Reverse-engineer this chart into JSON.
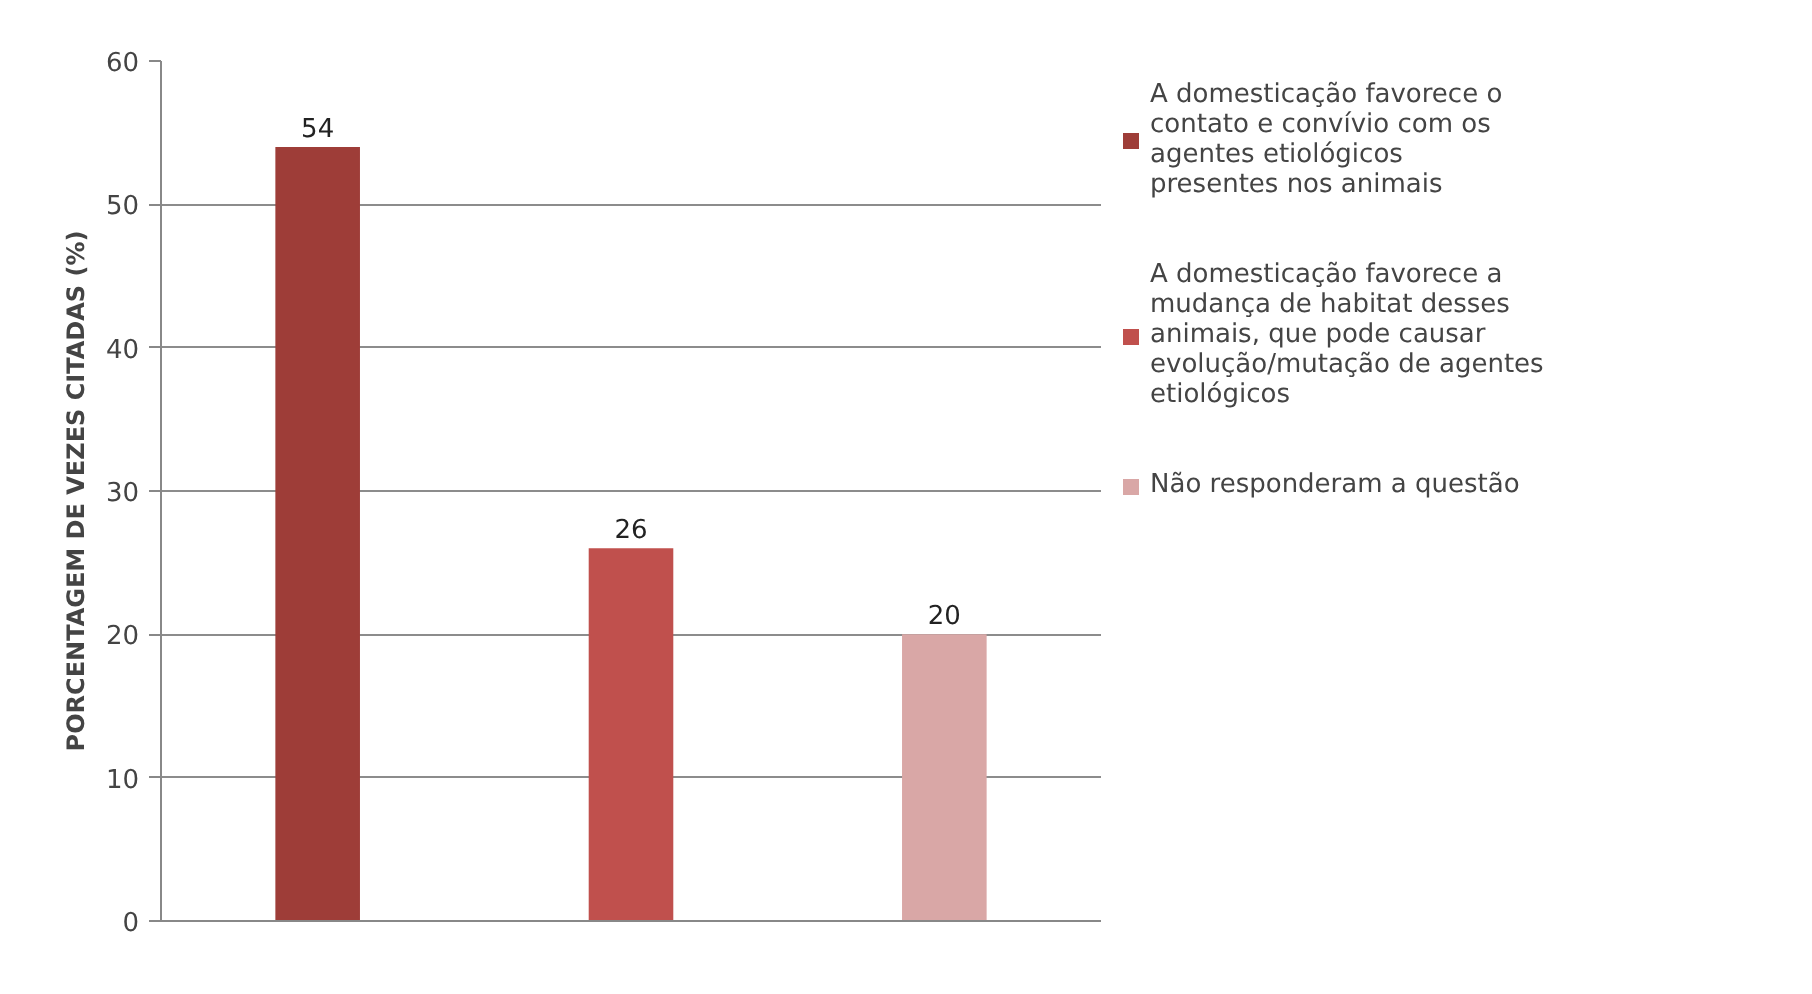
{
  "chart_data": {
    "type": "bar",
    "ylabel": "PORCENTAGEM DE VEZES CITADAS (%)",
    "categories": [
      null,
      null,
      null
    ],
    "series": [
      {
        "name": "A domesticação favorece o contato e convívio com os agentes etiológicos presentes nos animais",
        "color": "#9e3d38",
        "values": [
          54,
          null,
          null
        ]
      },
      {
        "name": "A domesticação favorece a mudança de habitat desses animais, que pode causar evolução/mutação de agentes etiológicos",
        "color": "#c0504d",
        "values": [
          null,
          26,
          null
        ]
      },
      {
        "name": "Não responderam a questão",
        "color": "#d9a7a6",
        "values": [
          null,
          null,
          20
        ]
      }
    ],
    "ylim": [
      0,
      60
    ],
    "yticks": [
      0,
      10,
      20,
      30,
      40,
      50,
      60
    ],
    "grid": "y",
    "legend": "right",
    "data_labels": true
  }
}
